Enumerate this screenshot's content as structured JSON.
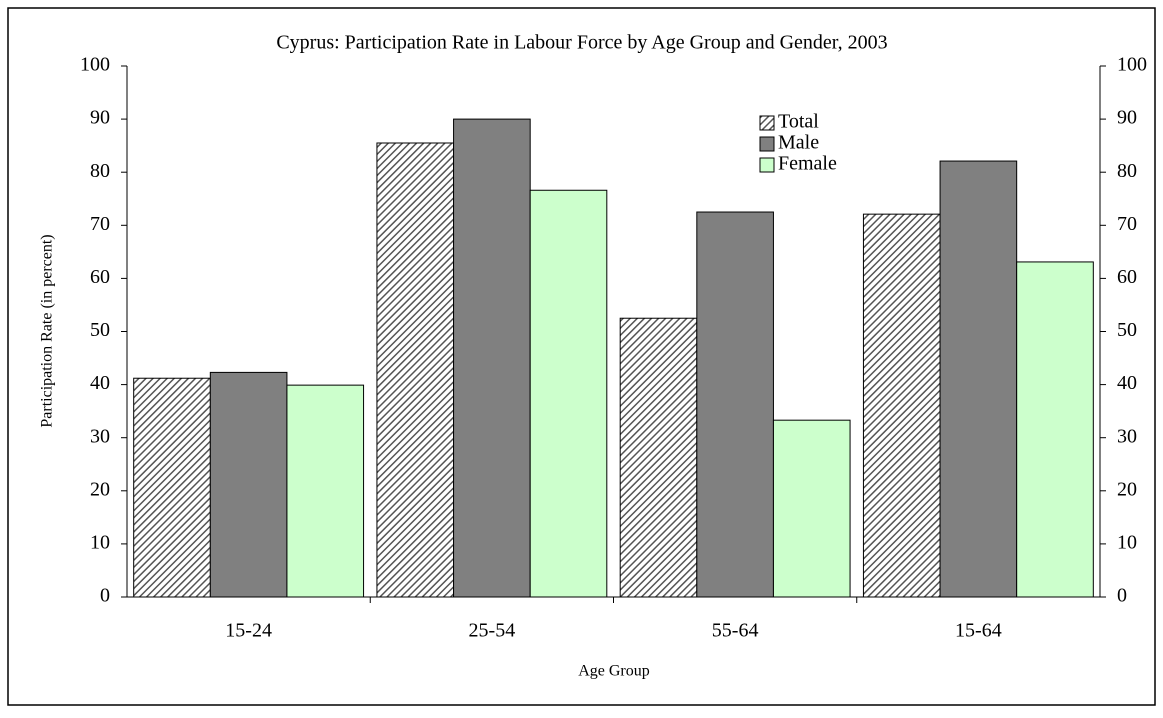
{
  "chart_data": {
    "type": "bar",
    "title": "Cyprus:  Participation Rate in Labour Force by Age Group and Gender, 2003",
    "x_label": "Age Group",
    "y_label": "Participation Rate (in percent)",
    "categories": [
      "15-24",
      "25-54",
      "55-64",
      "15-64"
    ],
    "series": [
      {
        "name": "Total",
        "color": "#555555",
        "pattern": "diagonal-hatch",
        "values": [
          41.2,
          85.5,
          52.5,
          72.1
        ]
      },
      {
        "name": "Male",
        "color": "#808080",
        "values": [
          42.3,
          90.0,
          72.5,
          82.1
        ]
      },
      {
        "name": "Female",
        "color": "#ccffcc",
        "values": [
          39.9,
          76.6,
          33.3,
          63.1
        ]
      }
    ],
    "ylim": [
      0,
      100
    ],
    "yticks": [
      0,
      10,
      20,
      30,
      40,
      50,
      60,
      70,
      80,
      90,
      100
    ],
    "y2lim": [
      0,
      100
    ],
    "y2ticks": [
      0,
      10,
      20,
      30,
      40,
      50,
      60,
      70,
      80,
      90,
      100
    ],
    "grid": false,
    "legend": "top-right"
  }
}
